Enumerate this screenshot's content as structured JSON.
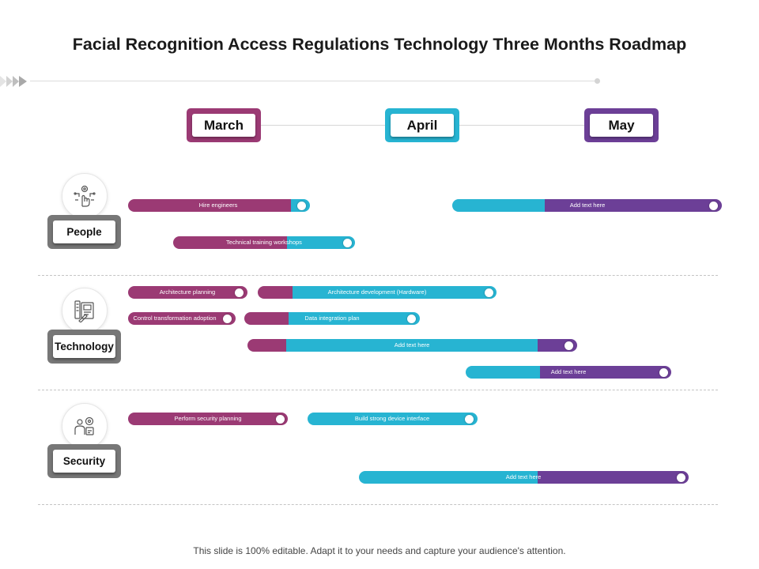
{
  "title": "Facial Recognition Access Regulations Technology Three Months Roadmap",
  "months": [
    {
      "label": "March",
      "color": "#9b3a74"
    },
    {
      "label": "April",
      "color": "#27b4d2"
    },
    {
      "label": "May",
      "color": "#6c3f97"
    }
  ],
  "categories": [
    {
      "label": "People",
      "icon": "hand-pointer-gear-icon"
    },
    {
      "label": "Technology",
      "icon": "document-pencil-icon"
    },
    {
      "label": "Security",
      "icon": "person-gear-icon"
    }
  ],
  "bars": [
    {
      "text": "Hire engineers"
    },
    {
      "text": "Add text here"
    },
    {
      "text": "Technical  training workshops"
    },
    {
      "text": "Architecture  planning"
    },
    {
      "text": "Architecture  development  (Hardware)"
    },
    {
      "text": "Control  transformation  adoption"
    },
    {
      "text": "Data integration  plan"
    },
    {
      "text": "Add text here"
    },
    {
      "text": "Add text here"
    },
    {
      "text": "Perform  security planning"
    },
    {
      "text": "Build strong  device interface"
    },
    {
      "text": "Add text here"
    }
  ],
  "colors": {
    "plum": "#9b3a74",
    "cyan": "#27b4d2",
    "purple": "#6c3f97",
    "gray": "#777777"
  },
  "footer": "This slide is 100% editable. Adapt it to your needs and capture your audience's attention."
}
